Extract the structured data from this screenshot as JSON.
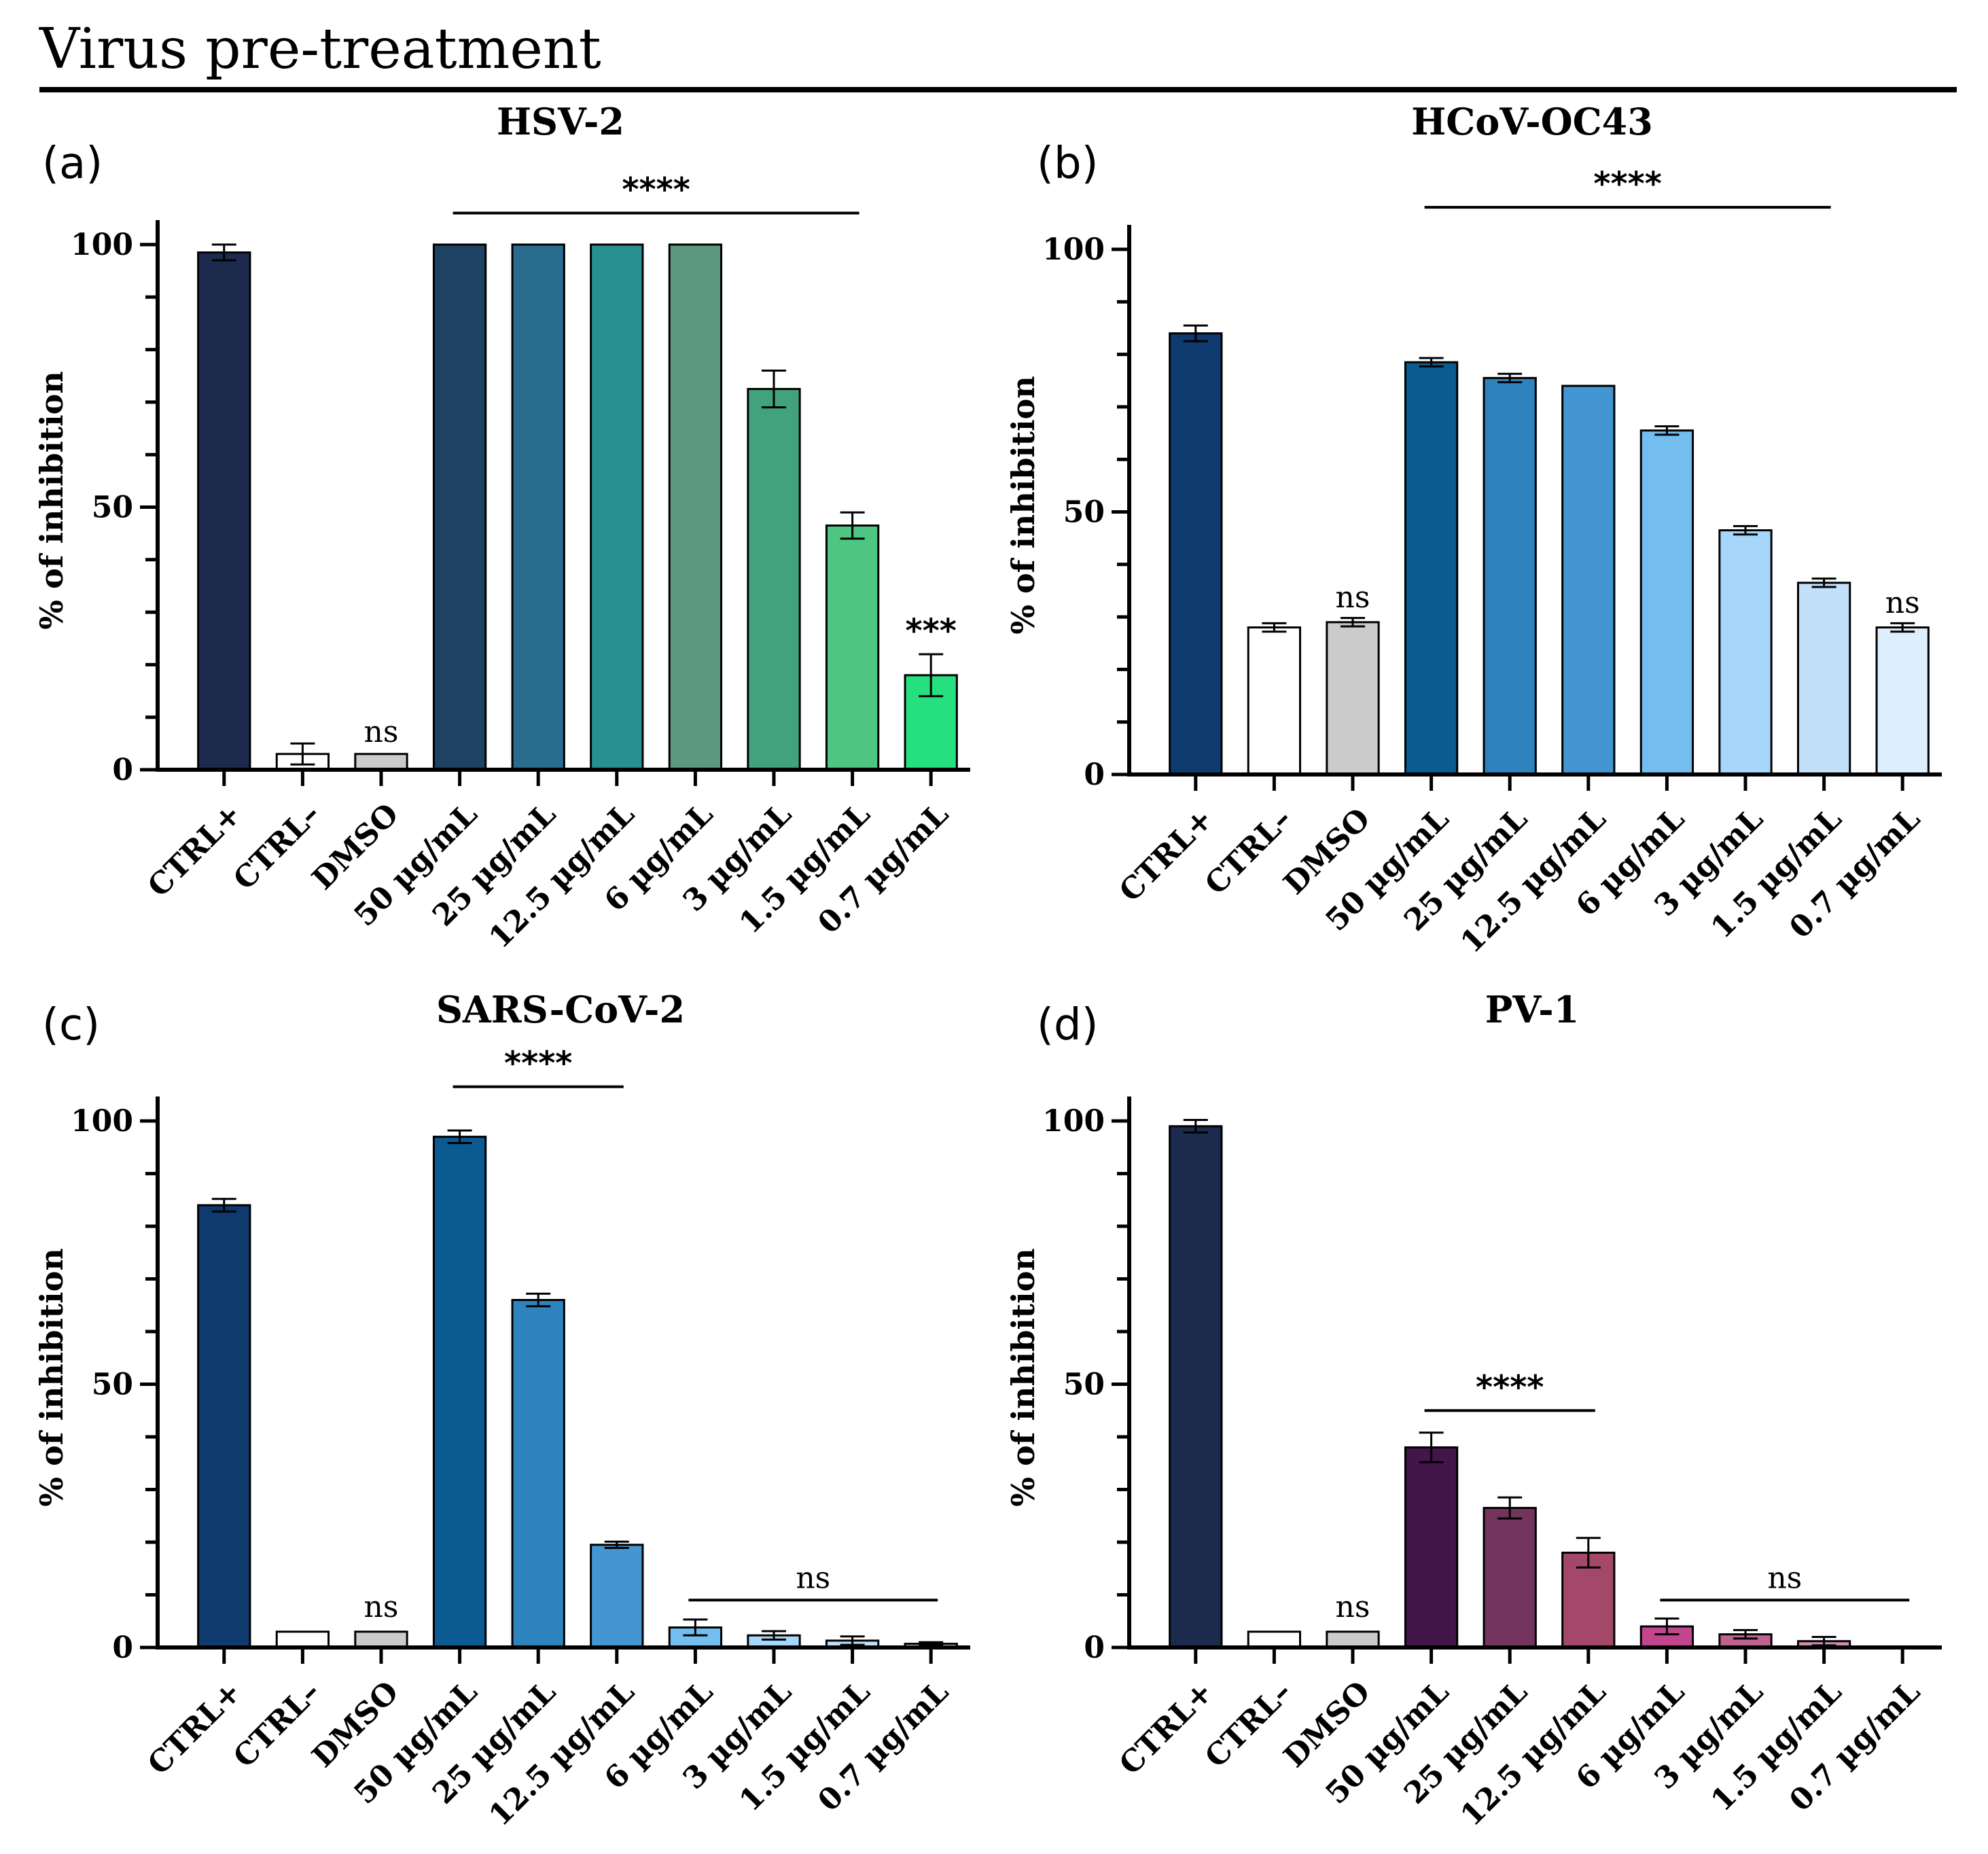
{
  "page_title": "Virus pre-treatment",
  "chart_data": [
    {
      "type": "bar",
      "panel": "(a)",
      "title": "HSV-2",
      "xlabel": "",
      "ylabel": "% of inhibition",
      "ylim": [
        0,
        105
      ],
      "yticks": [
        0,
        50,
        100
      ],
      "categories": [
        "CTRL+",
        "CTRL–",
        "DMSO",
        "50 µg/mL",
        "25 µg/mL",
        "12.5 µg/mL",
        "6 µg/mL",
        "3 µg/mL",
        "1.5 µg/mL",
        "0.7 µg/mL"
      ],
      "values": [
        98.5,
        3,
        3,
        100,
        100,
        100,
        100,
        72.5,
        46.5,
        18
      ],
      "errors": [
        1.5,
        2,
        0,
        0,
        0,
        0,
        0,
        3.5,
        2.5,
        4
      ],
      "colors": [
        "#1c2b4d",
        "#ffffff",
        "#cbcbcb",
        "#1e4262",
        "#296c8d",
        "#28918f",
        "#5c9880",
        "#42a27e",
        "#4ec681",
        "#26e07f"
      ],
      "significance": [
        {
          "label": "****",
          "from": 3,
          "to": 8,
          "bar": true,
          "y": 106
        },
        {
          "label": "ns",
          "from": 2,
          "to": 2,
          "bar": false,
          "y": 4
        },
        {
          "label": "***",
          "from": 9,
          "to": 9,
          "bar": false,
          "y": 23
        }
      ]
    },
    {
      "type": "bar",
      "panel": "(b)",
      "title": "HCoV-OC43",
      "xlabel": "",
      "ylabel": "% of inhibition",
      "ylim": [
        0,
        100
      ],
      "yticks": [
        0,
        50,
        100
      ],
      "categories": [
        "CTRL+",
        "CTRL–",
        "DMSO",
        "50 µg/mL",
        "25 µg/mL",
        "12.5 µg/mL",
        "6 µg/mL",
        "3 µg/mL",
        "1.5 µg/mL",
        "0.7 µg/mL"
      ],
      "values": [
        84,
        28,
        29,
        78.5,
        75.5,
        74,
        65.5,
        46.5,
        36.5,
        28
      ],
      "errors": [
        1.5,
        0.8,
        0.8,
        0.8,
        0.8,
        0,
        0.8,
        0.8,
        0.8,
        0.8
      ],
      "colors": [
        "#0e3a6d",
        "#ffffff",
        "#cbcbcb",
        "#0c5a92",
        "#2e83be",
        "#4496d2",
        "#73bdef",
        "#a6d6fa",
        "#c3e0fb",
        "#ddeefc"
      ],
      "significance": [
        {
          "label": "****",
          "from": 3,
          "to": 8,
          "bar": true,
          "y": 108
        },
        {
          "label": "ns",
          "from": 2,
          "to": 2,
          "bar": false,
          "y": 30.5
        },
        {
          "label": "ns",
          "from": 9,
          "to": 9,
          "bar": false,
          "y": 29.5
        }
      ]
    },
    {
      "type": "bar",
      "panel": "(c)",
      "title": "SARS-CoV-2",
      "xlabel": "",
      "ylabel": "% of inhibition",
      "ylim": [
        0,
        100
      ],
      "yticks": [
        0,
        50,
        100
      ],
      "categories": [
        "CTRL+",
        "CTRL–",
        "DMSO",
        "50 µg/mL",
        "25 µg/mL",
        "12.5 µg/mL",
        "6 µg/mL",
        "3 µg/mL",
        "1.5 µg/mL",
        "0.7 µg/mL"
      ],
      "values": [
        84,
        3,
        3,
        97,
        66,
        19.5,
        3.8,
        2.3,
        1.3,
        0.7
      ],
      "errors": [
        1.2,
        0,
        0,
        1.2,
        1.2,
        0.6,
        1.5,
        0.8,
        0.8,
        0.3
      ],
      "colors": [
        "#0e3a6d",
        "#ffffff",
        "#cbcbcb",
        "#0c5a92",
        "#2e83be",
        "#4496d2",
        "#73bdef",
        "#a6d6fa",
        "#c3e0fb",
        "#ddeefc"
      ],
      "significance": [
        {
          "label": "****",
          "from": 3,
          "to": 5,
          "bar": true,
          "y": 106.5
        },
        {
          "label": "ns",
          "from": 2,
          "to": 2,
          "bar": false,
          "y": 4.5
        },
        {
          "label": "ns",
          "from": 6,
          "to": 9,
          "bar": true,
          "y": 9
        }
      ]
    },
    {
      "type": "bar",
      "panel": "(d)",
      "title": "PV-1",
      "xlabel": "",
      "ylabel": "% of inhibition",
      "ylim": [
        0,
        100
      ],
      "yticks": [
        0,
        50,
        100
      ],
      "categories": [
        "CTRL+",
        "CTRL–",
        "DMSO",
        "50 µg/mL",
        "25 µg/mL",
        "12.5 µg/mL",
        "6 µg/mL",
        "3 µg/mL",
        "1.5 µg/mL",
        "0.7 µg/mL"
      ],
      "values": [
        99,
        3,
        3,
        38,
        26.5,
        18,
        4,
        2.5,
        1.2,
        0
      ],
      "errors": [
        1.2,
        0,
        0,
        2.8,
        2,
        2.8,
        1.5,
        0.8,
        0.8,
        0
      ],
      "colors": [
        "#1c2b4d",
        "#ffffff",
        "#cbcbcb",
        "#43164a",
        "#73355d",
        "#a34868",
        "#c2468d",
        "#c0628f",
        "#cf8bb0",
        "#f2d4e6"
      ],
      "significance": [
        {
          "label": "****",
          "from": 3,
          "to": 5,
          "bar": true,
          "y": 45
        },
        {
          "label": "ns",
          "from": 2,
          "to": 2,
          "bar": false,
          "y": 4.5
        },
        {
          "label": "ns",
          "from": 6,
          "to": 9,
          "bar": true,
          "y": 9
        }
      ]
    }
  ]
}
